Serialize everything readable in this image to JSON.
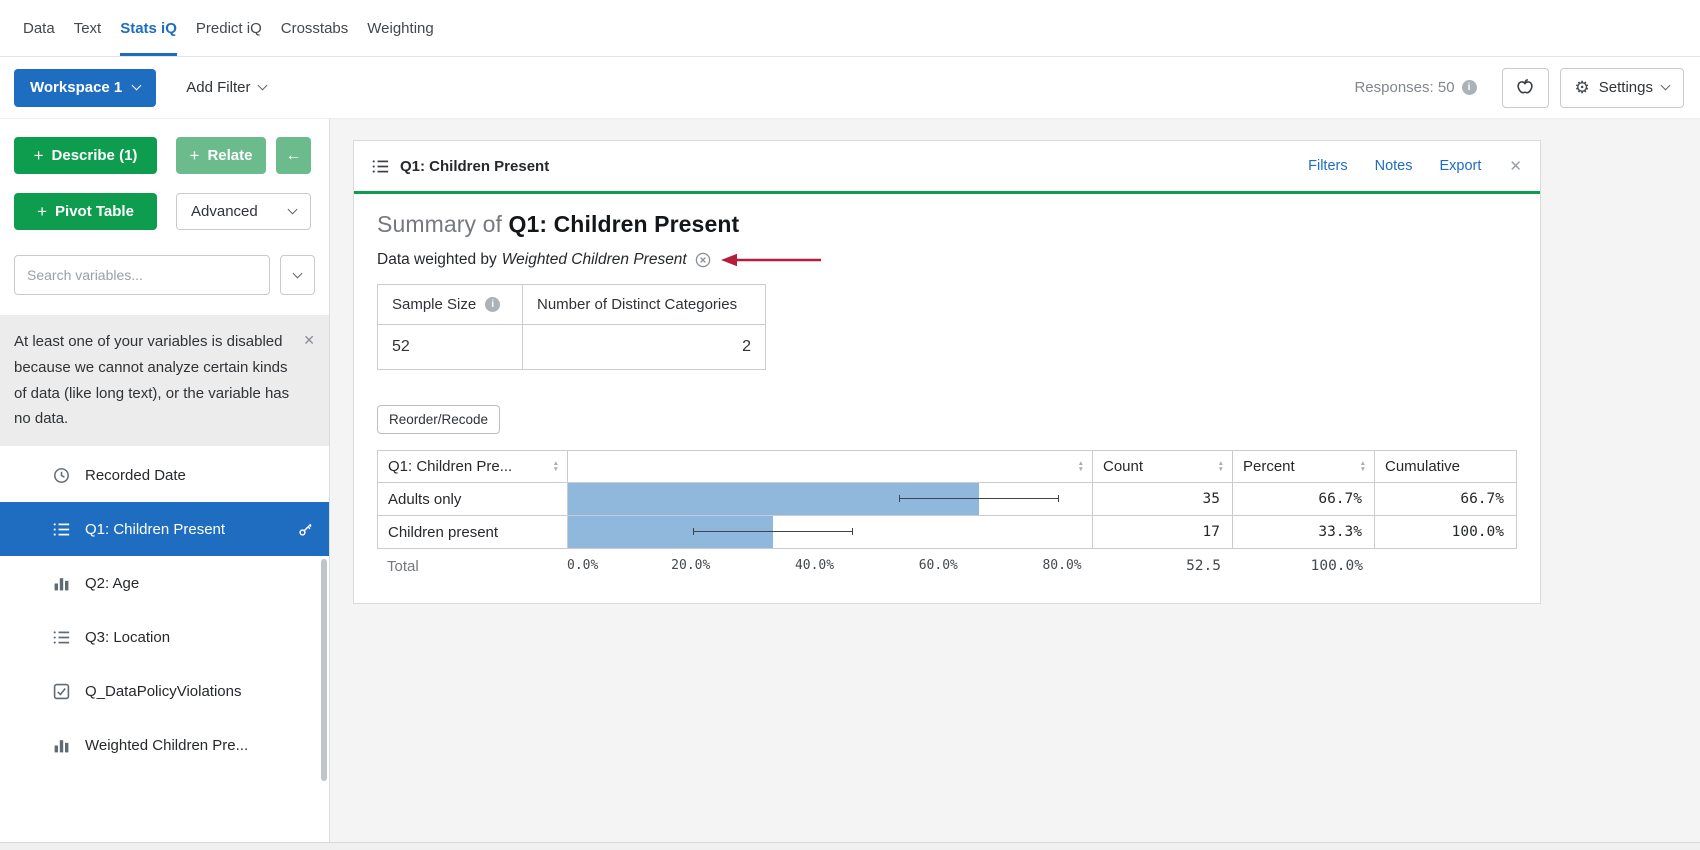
{
  "colors": {
    "accent_blue": "#1f6dc1",
    "brand_green": "#0e9d4f",
    "light_green": "#6cbb8d",
    "bar_fill": "#8fb8dc",
    "arrow_red": "#b21e3c"
  },
  "glyphs": {
    "plus": "+",
    "close": "✕",
    "gear": "⚙",
    "back_arrow": "←",
    "info": "i",
    "sort_asc": "▲",
    "sort_desc": "▼"
  },
  "nav": {
    "tabs": [
      {
        "label": "Data",
        "active": false
      },
      {
        "label": "Text",
        "active": false
      },
      {
        "label": "Stats iQ",
        "active": true
      },
      {
        "label": "Predict iQ",
        "active": false
      },
      {
        "label": "Crosstabs",
        "active": false
      },
      {
        "label": "Weighting",
        "active": false
      }
    ]
  },
  "toolbar": {
    "workspace": "Workspace 1",
    "add_filter": "Add Filter",
    "responses": "Responses: 50",
    "settings": "Settings"
  },
  "sidebar": {
    "describe": "Describe (1)",
    "relate": "Relate",
    "pivot_table": "Pivot Table",
    "advanced": "Advanced",
    "search_placeholder": "Search variables...",
    "notice": "At least one of your variables is disabled because we cannot analyze certain kinds of data (like long text), or the variable has no data.",
    "variables": [
      {
        "label": "Recorded Date",
        "icon": "clock-icon",
        "selected": false
      },
      {
        "label": "Q1: Children Present",
        "icon": "list-icon",
        "selected": true
      },
      {
        "label": "Q2: Age",
        "icon": "bar-chart-icon",
        "selected": false
      },
      {
        "label": "Q3: Location",
        "icon": "list-icon",
        "selected": false
      },
      {
        "label": "Q_DataPolicyViolations",
        "icon": "checkbox-icon",
        "selected": false
      },
      {
        "label": "Weighted Children Pre...",
        "icon": "bar-chart-icon",
        "selected": false
      }
    ]
  },
  "card": {
    "title": "Q1: Children Present",
    "links": [
      "Filters",
      "Notes",
      "Export"
    ],
    "summary_prefix": "Summary of ",
    "summary_title": "Q1: Children Present",
    "weighted_prefix": "Data weighted by",
    "weighted_var": "Weighted Children Present",
    "stats": {
      "col1": "Sample Size",
      "col2": "Number of Distinct Categories",
      "val1": "52",
      "val2": "2"
    },
    "reorder": "Reorder/Recode",
    "results": {
      "headers": {
        "variable": "Q1: Children Pre...",
        "count": "Count",
        "percent": "Percent",
        "cumulative": "Cumulative"
      },
      "rows": [
        {
          "label": "Adults only",
          "value": 66.7,
          "count": "35",
          "percent": "66.7%",
          "cumulative": "66.7%"
        },
        {
          "label": "Children present",
          "value": 33.3,
          "count": "17",
          "percent": "33.3%",
          "cumulative": "100.0%"
        }
      ],
      "axis_ticks": [
        {
          "label": "0.0%",
          "value": 0
        },
        {
          "label": "20.0%",
          "value": 20
        },
        {
          "label": "40.0%",
          "value": 40
        },
        {
          "label": "60.0%",
          "value": 60
        },
        {
          "label": "80.0%",
          "value": 80
        }
      ],
      "axis_max": 85,
      "total_label": "Total",
      "total_count": "52.5",
      "total_percent": "100.0%"
    }
  },
  "chart_data": {
    "type": "bar",
    "orientation": "horizontal",
    "title": "Summary of Q1: Children Present",
    "categories": [
      "Adults only",
      "Children present"
    ],
    "values": [
      66.7,
      33.3
    ],
    "counts": [
      35,
      17
    ],
    "cumulative_percent": [
      66.7,
      100.0
    ],
    "x_ticks": [
      "0.0%",
      "20.0%",
      "40.0%",
      "60.0%",
      "80.0%"
    ],
    "xlim": [
      0,
      85
    ],
    "total_count": 52.5,
    "total_percent": 100.0
  }
}
